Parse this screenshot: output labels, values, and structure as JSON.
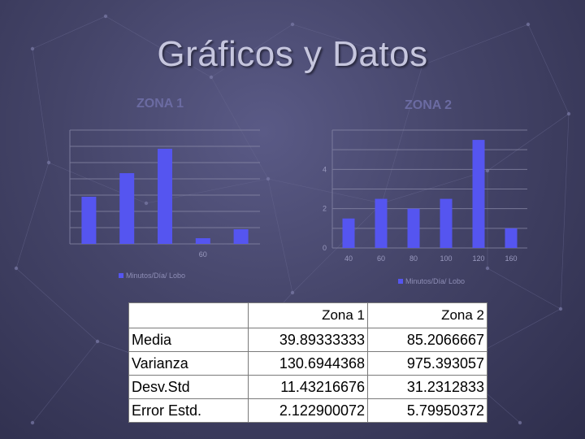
{
  "slide_title": "Gráficos y Datos",
  "colors": {
    "bar": "#5555f0",
    "gridline": "#8a8aa8",
    "axis": "#7a7a9c"
  },
  "chart_data": [
    {
      "type": "bar",
      "title": "ZONA 1",
      "categories": [
        "",
        "",
        "",
        "60",
        ""
      ],
      "values": [
        5.8,
        8.7,
        11.7,
        0.7,
        1.8
      ],
      "ylim": [
        0,
        14
      ],
      "ytick_values": [
        0,
        2,
        4,
        6,
        8,
        10,
        12,
        14
      ],
      "ytick_labels": [],
      "legend": "Minutos/Día/ Lobo",
      "grid": true
    },
    {
      "type": "bar",
      "title": "ZONA 2",
      "categories": [
        "40",
        "60",
        "80",
        "100",
        "120",
        "160"
      ],
      "values": [
        1.5,
        2.5,
        2.0,
        2.5,
        5.5,
        1.0
      ],
      "ylim": [
        0,
        6
      ],
      "ytick_values": [
        0,
        1,
        2,
        3,
        4,
        5,
        6
      ],
      "ytick_labels": [
        "0",
        "",
        "2",
        "",
        "4",
        "",
        ""
      ],
      "legend": "Minutos/Día/ Lobo",
      "grid": true
    }
  ],
  "stats_table": {
    "headers": [
      "",
      "Zona 1",
      "Zona 2"
    ],
    "rows": [
      {
        "label": "Media",
        "zona1": "39.89333333",
        "zona2": "85.2066667"
      },
      {
        "label": "Varianza",
        "zona1": "130.6944368",
        "zona2": "975.393057"
      },
      {
        "label": "Desv.Std",
        "zona1": "11.43216676",
        "zona2": "31.2312833"
      },
      {
        "label": "Error Estd.",
        "zona1": "2.122900072",
        "zona2": "5.79950372"
      }
    ]
  }
}
